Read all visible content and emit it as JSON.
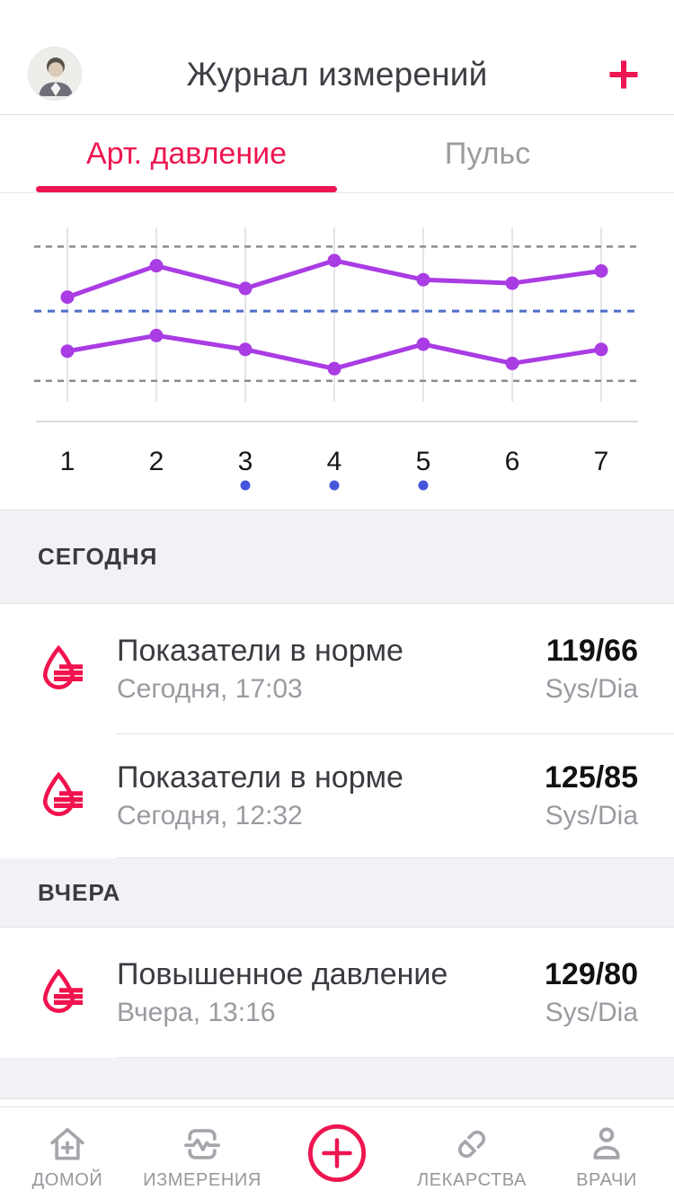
{
  "header": {
    "title": "Журнал измерений",
    "add_label": "+"
  },
  "tabs": [
    {
      "label": "Арт. давление",
      "active": true
    },
    {
      "label": "Пульс",
      "active": false
    }
  ],
  "chart_data": {
    "type": "line",
    "title": "",
    "xlabel": "",
    "ylabel": "",
    "x": [
      "1",
      "2",
      "3",
      "4",
      "5",
      "6",
      "7"
    ],
    "series": [
      {
        "name": "systolic",
        "values": [
          60,
          78,
          65,
          81,
          70,
          68,
          75
        ]
      },
      {
        "name": "diastolic",
        "values": [
          29,
          38,
          30,
          19,
          33,
          22,
          30
        ]
      }
    ],
    "value_scale": "relative-percent (chart shows no y-axis labels)",
    "ylim": [
      0,
      100
    ],
    "reference_lines": [
      {
        "name": "upper-threshold",
        "value": 89,
        "style": "dashed",
        "color": "#8B8B90"
      },
      {
        "name": "normal-level",
        "value": 52,
        "style": "dashed",
        "color": "#4E6EC8"
      },
      {
        "name": "lower-threshold",
        "value": 12,
        "style": "dashed",
        "color": "#8B8B90"
      }
    ],
    "marked_days": [
      "3",
      "4",
      "5"
    ],
    "grid": "vertical-only",
    "legend": "none",
    "line_color": "#A93CE3",
    "marker_color": "#4656DB"
  },
  "sections": [
    {
      "header": "СЕГОДНЯ",
      "rows": [
        {
          "icon": "blood-pressure-drop-icon",
          "title": "Показатели в норме",
          "subtitle": "Сегодня, 17:03",
          "value": "119/66",
          "unit": "Sys/Dia"
        },
        {
          "icon": "blood-pressure-drop-icon",
          "title": "Показатели в норме",
          "subtitle": "Сегодня, 12:32",
          "value": "125/85",
          "unit": "Sys/Dia"
        }
      ]
    },
    {
      "header": "ВЧЕРА",
      "rows": [
        {
          "icon": "blood-pressure-drop-icon",
          "title": "Повышенное давление",
          "subtitle": "Вчера, 13:16",
          "value": "129/80",
          "unit": "Sys/Dia"
        }
      ]
    }
  ],
  "nav": {
    "items": [
      {
        "label": "ДОМОЙ",
        "icon": "home-icon"
      },
      {
        "label": "ИЗМЕРЕНИЯ",
        "icon": "measurements-icon"
      },
      {
        "label": "",
        "icon": "add-circle-icon"
      },
      {
        "label": "ЛЕКАРСТВА",
        "icon": "pill-icon"
      },
      {
        "label": "ВРАЧИ",
        "icon": "doctor-icon"
      }
    ]
  },
  "colors": {
    "accent": "#ED1650",
    "chart_line": "#A93CE3",
    "marker_blue": "#4656DB",
    "ref_blue": "#4E6EC8",
    "ref_gray": "#8B8B90",
    "grid": "#E5E5E8",
    "axis": "#DADADD",
    "band_bg": "#F2F2F6",
    "muted_text": "#9A9AA1"
  }
}
